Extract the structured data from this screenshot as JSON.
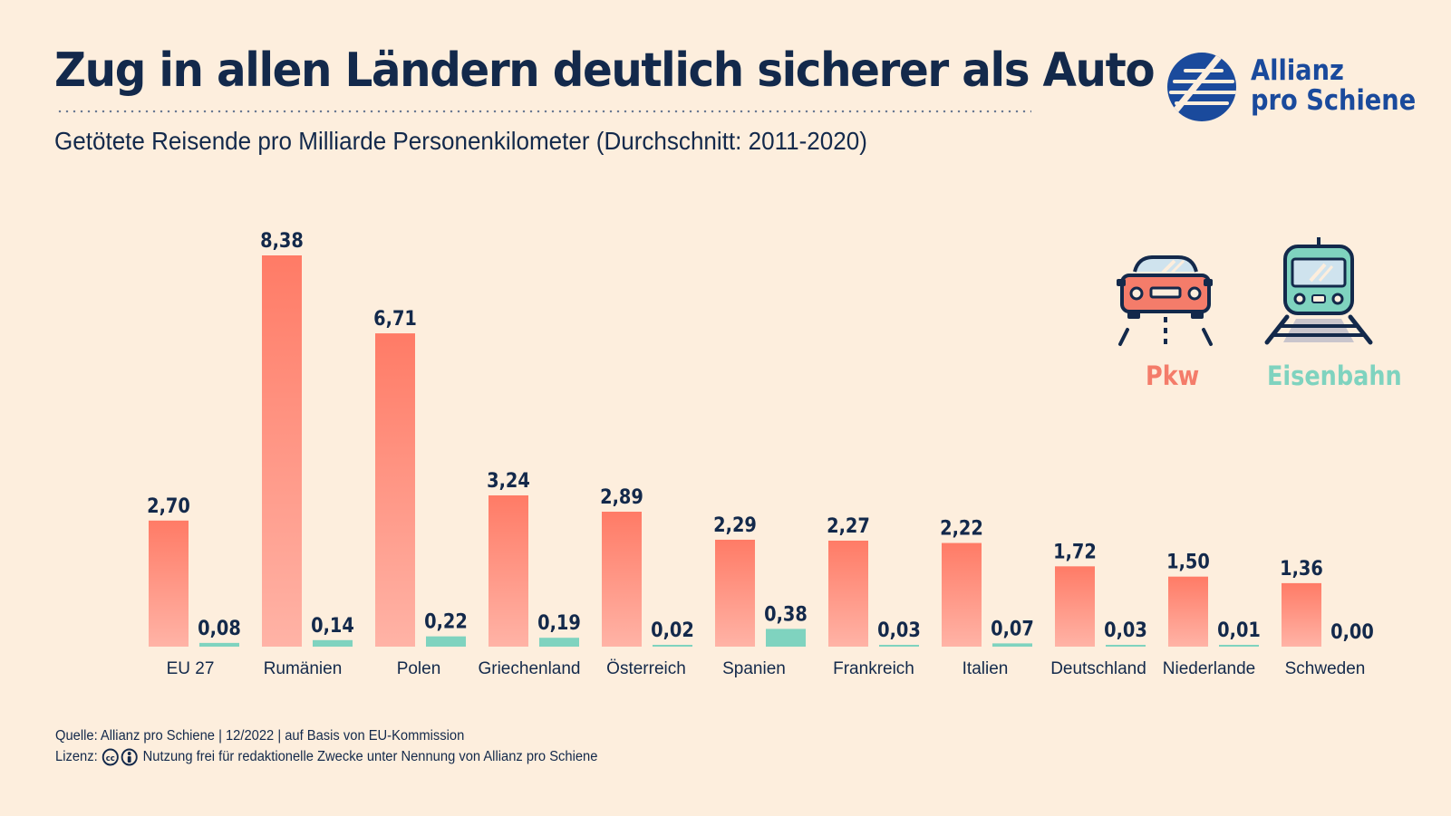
{
  "header": {
    "title": "Zug in allen Ländern deutlich sicherer als Auto",
    "subtitle": "Getötete Reisende pro Milliarde Personenkilometer (Durchschnitt: 2011-2020)"
  },
  "logo": {
    "line1": "Allianz",
    "line2": "pro Schiene",
    "color": "#1a4a9c"
  },
  "legend": [
    {
      "label": "Pkw",
      "icon": "car-icon",
      "color": "#f47c6a"
    },
    {
      "label": "Eisenbahn",
      "icon": "train-icon",
      "color": "#7fd3bf"
    }
  ],
  "chart_data": {
    "type": "bar",
    "categories": [
      "EU 27",
      "Rumänien",
      "Polen",
      "Griechenland",
      "Österreich",
      "Spanien",
      "Frankreich",
      "Italien",
      "Deutschland",
      "Niederlande",
      "Schweden"
    ],
    "series": [
      {
        "name": "Pkw",
        "values": [
          2.7,
          8.38,
          6.71,
          3.24,
          2.89,
          2.29,
          2.27,
          2.22,
          1.72,
          1.5,
          1.36
        ],
        "labels": [
          "2,70",
          "8,38",
          "6,71",
          "3,24",
          "2,89",
          "2,29",
          "2,27",
          "2,22",
          "1,72",
          "1,50",
          "1,36"
        ],
        "color": "#f47c6a"
      },
      {
        "name": "Eisenbahn",
        "values": [
          0.08,
          0.14,
          0.22,
          0.19,
          0.02,
          0.38,
          0.03,
          0.07,
          0.03,
          0.01,
          0.0
        ],
        "labels": [
          "0,08",
          "0,14",
          "0,22",
          "0,19",
          "0,02",
          "0,38",
          "0,03",
          "0,07",
          "0,03",
          "0,01",
          "0,00"
        ],
        "color": "#7fd3bf"
      }
    ],
    "ylim": [
      0,
      8.38
    ],
    "grid": false,
    "legend_position": "top-right"
  },
  "footer": {
    "source": "Quelle: Allianz pro Schiene | 12/2022 | auf Basis von EU-Kommission",
    "license_label": "Lizenz:",
    "license_text": "Nutzung frei für redaktionelle Zwecke unter Nennung von Allianz pro Schiene"
  }
}
